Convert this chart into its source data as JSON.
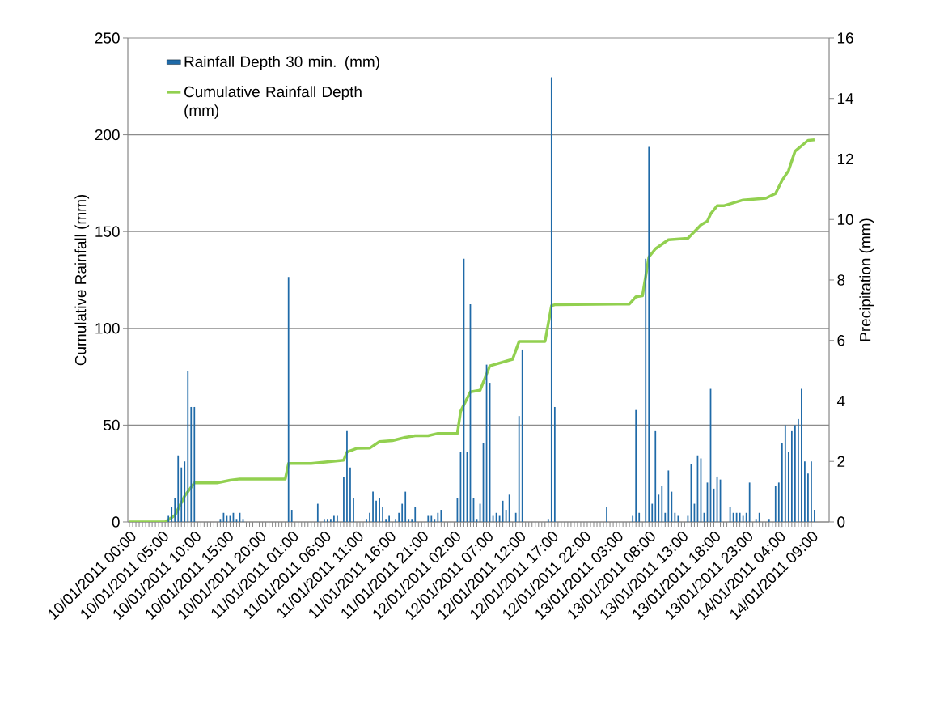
{
  "chart_data": {
    "type": "bar",
    "ylabel": "Cumulative Rainfall (mm)",
    "y2label": "Precipitation (mm)",
    "xlim": [
      "2011-01-09T23:45",
      "2011-01-14T11:45"
    ],
    "xticks": [
      {
        "value": "2011-01-10T00:00",
        "label": "10/01/2011 00:00"
      },
      {
        "value": "2011-01-10T05:00",
        "label": "10/01/2011 05:00"
      },
      {
        "value": "2011-01-10T10:00",
        "label": "10/01/2011 10:00"
      },
      {
        "value": "2011-01-10T15:00",
        "label": "10/01/2011 15:00"
      },
      {
        "value": "2011-01-10T20:00",
        "label": "10/01/2011 20:00"
      },
      {
        "value": "2011-01-11T01:00",
        "label": "11/01/2011 01:00"
      },
      {
        "value": "2011-01-11T06:00",
        "label": "11/01/2011 06:00"
      },
      {
        "value": "2011-01-11T11:00",
        "label": "11/01/2011 11:00"
      },
      {
        "value": "2011-01-11T16:00",
        "label": "11/01/2011 16:00"
      },
      {
        "value": "2011-01-11T21:00",
        "label": "11/01/2011 21:00"
      },
      {
        "value": "2011-01-12T02:00",
        "label": "12/01/2011 02:00"
      },
      {
        "value": "2011-01-12T07:00",
        "label": "12/01/2011 07:00"
      },
      {
        "value": "2011-01-12T12:00",
        "label": "12/01/2011 12:00"
      },
      {
        "value": "2011-01-12T17:00",
        "label": "12/01/2011 17:00"
      },
      {
        "value": "2011-01-12T22:00",
        "label": "12/01/2011 22:00"
      },
      {
        "value": "2011-01-13T03:00",
        "label": "13/01/2011 03:00"
      },
      {
        "value": "2011-01-13T08:00",
        "label": "13/01/2011 08:00"
      },
      {
        "value": "2011-01-13T13:00",
        "label": "13/01/2011 13:00"
      },
      {
        "value": "2011-01-13T18:00",
        "label": "13/01/2011 18:00"
      },
      {
        "value": "2011-01-13T23:00",
        "label": "13/01/2011 23:00"
      },
      {
        "value": "2011-01-14T04:00",
        "label": "14/01/2011 04:00"
      },
      {
        "value": "2011-01-14T09:00",
        "label": "14/01/2011 09:00"
      }
    ],
    "ylim": [
      0,
      250
    ],
    "yticks": [
      0,
      50,
      100,
      150,
      200,
      250
    ],
    "y2lim": [
      0,
      16
    ],
    "y2ticks": [
      0,
      2,
      4,
      6,
      8,
      10,
      12,
      14,
      16
    ],
    "grid": "y",
    "legend": "top left",
    "series": [
      {
        "name": "Rainfall Depth 30 min. (mm)",
        "axis": "y2",
        "color": "#1f6aa8",
        "x": [
          "2011-01-10T06:00",
          "2011-01-10T06:30",
          "2011-01-10T07:00",
          "2011-01-10T07:30",
          "2011-01-10T08:00",
          "2011-01-10T08:30",
          "2011-01-10T09:00",
          "2011-01-10T09:30",
          "2011-01-10T10:00",
          "2011-01-10T14:00",
          "2011-01-10T14:30",
          "2011-01-10T15:00",
          "2011-01-10T15:30",
          "2011-01-10T16:00",
          "2011-01-10T16:30",
          "2011-01-10T17:00",
          "2011-01-10T17:30",
          "2011-01-11T00:30",
          "2011-01-11T01:00",
          "2011-01-11T05:00",
          "2011-01-11T06:00",
          "2011-01-11T06:30",
          "2011-01-11T07:00",
          "2011-01-11T07:30",
          "2011-01-11T08:00",
          "2011-01-11T09:00",
          "2011-01-11T09:30",
          "2011-01-11T10:00",
          "2011-01-11T10:30",
          "2011-01-11T12:30",
          "2011-01-11T13:00",
          "2011-01-11T13:30",
          "2011-01-11T14:00",
          "2011-01-11T14:30",
          "2011-01-11T15:00",
          "2011-01-11T15:30",
          "2011-01-11T16:00",
          "2011-01-11T17:00",
          "2011-01-11T17:30",
          "2011-01-11T18:00",
          "2011-01-11T18:30",
          "2011-01-11T19:00",
          "2011-01-11T19:30",
          "2011-01-11T20:00",
          "2011-01-11T22:00",
          "2011-01-11T22:30",
          "2011-01-11T23:00",
          "2011-01-11T23:30",
          "2011-01-12T00:00",
          "2011-01-12T02:30",
          "2011-01-12T03:00",
          "2011-01-12T03:30",
          "2011-01-12T04:00",
          "2011-01-12T04:30",
          "2011-01-12T05:00",
          "2011-01-12T05:30",
          "2011-01-12T06:00",
          "2011-01-12T06:30",
          "2011-01-12T07:00",
          "2011-01-12T07:30",
          "2011-01-12T08:00",
          "2011-01-12T08:30",
          "2011-01-12T09:00",
          "2011-01-12T09:30",
          "2011-01-12T10:00",
          "2011-01-12T10:30",
          "2011-01-12T11:30",
          "2011-01-12T12:00",
          "2011-01-12T12:30",
          "2011-01-12T16:30",
          "2011-01-12T17:00",
          "2011-01-12T17:30",
          "2011-01-13T01:30",
          "2011-01-13T05:30",
          "2011-01-13T06:00",
          "2011-01-13T06:30",
          "2011-01-13T07:30",
          "2011-01-13T08:00",
          "2011-01-13T08:30",
          "2011-01-13T09:00",
          "2011-01-13T09:30",
          "2011-01-13T10:00",
          "2011-01-13T10:30",
          "2011-01-13T11:00",
          "2011-01-13T11:30",
          "2011-01-13T12:00",
          "2011-01-13T12:30",
          "2011-01-13T14:00",
          "2011-01-13T14:30",
          "2011-01-13T15:00",
          "2011-01-13T15:30",
          "2011-01-13T16:00",
          "2011-01-13T16:30",
          "2011-01-13T17:00",
          "2011-01-13T17:30",
          "2011-01-13T18:00",
          "2011-01-13T18:30",
          "2011-01-13T19:00",
          "2011-01-13T20:30",
          "2011-01-13T21:00",
          "2011-01-13T21:30",
          "2011-01-13T22:00",
          "2011-01-13T22:30",
          "2011-01-13T23:00",
          "2011-01-13T23:30",
          "2011-01-14T00:30",
          "2011-01-14T01:00",
          "2011-01-14T02:30",
          "2011-01-14T03:30",
          "2011-01-14T04:00",
          "2011-01-14T04:30",
          "2011-01-14T05:00",
          "2011-01-14T05:30",
          "2011-01-14T06:00",
          "2011-01-14T06:30",
          "2011-01-14T07:00",
          "2011-01-14T07:30",
          "2011-01-14T08:00",
          "2011-01-14T08:30",
          "2011-01-14T09:00",
          "2011-01-14T09:30"
        ],
        "values": [
          0.2,
          0.5,
          0.8,
          2.2,
          1.8,
          2.0,
          5.0,
          3.8,
          3.8,
          0.1,
          0.3,
          0.2,
          0.2,
          0.3,
          0.1,
          0.3,
          0.1,
          8.1,
          0.4,
          0.6,
          0.1,
          0.1,
          0.1,
          0.2,
          0.2,
          1.5,
          3.0,
          1.8,
          0.8,
          0.1,
          0.3,
          1.0,
          0.7,
          0.8,
          0.5,
          0.1,
          0.2,
          0.1,
          0.3,
          0.6,
          1.0,
          0.1,
          0.1,
          0.5,
          0.2,
          0.2,
          0.1,
          0.3,
          0.4,
          0.8,
          2.3,
          8.7,
          2.3,
          7.2,
          0.8,
          0.1,
          0.6,
          2.6,
          5.2,
          4.6,
          0.2,
          0.3,
          0.2,
          0.7,
          0.4,
          0.9,
          0.3,
          3.5,
          5.7,
          0.1,
          14.7,
          3.8,
          0.5,
          0.2,
          3.7,
          0.3,
          8.7,
          12.4,
          0.6,
          3.0,
          0.9,
          1.2,
          0.3,
          1.7,
          1.0,
          0.3,
          0.2,
          0.2,
          1.9,
          0.6,
          2.2,
          2.1,
          0.3,
          1.3,
          4.4,
          1.1,
          1.5,
          1.4,
          0.5,
          0.3,
          0.3,
          0.3,
          0.2,
          0.3,
          1.3,
          0.1,
          0.3,
          0.1,
          1.2,
          1.3,
          2.6,
          3.2,
          2.3,
          3.0,
          3.2,
          3.4,
          4.4,
          2.0,
          1.6,
          2.0,
          0.4
        ]
      },
      {
        "name": "Cumulative Rainfall Depth (mm)",
        "type": "line",
        "color": "#92d050",
        "x": [
          "2011-01-10T00:00",
          "2011-01-10T05:30",
          "2011-01-10T07:00",
          "2011-01-10T08:30",
          "2011-01-10T10:00",
          "2011-01-10T13:30",
          "2011-01-10T15:30",
          "2011-01-10T17:00",
          "2011-01-11T00:00",
          "2011-01-11T00:30",
          "2011-01-11T04:00",
          "2011-01-11T09:00",
          "2011-01-11T09:30",
          "2011-01-11T11:00",
          "2011-01-11T13:00",
          "2011-01-11T14:30",
          "2011-01-11T16:30",
          "2011-01-11T18:30",
          "2011-01-11T20:00",
          "2011-01-11T22:00",
          "2011-01-11T23:30",
          "2011-01-12T02:30",
          "2011-01-12T03:00",
          "2011-01-12T04:30",
          "2011-01-12T06:00",
          "2011-01-12T07:30",
          "2011-01-12T11:00",
          "2011-01-12T12:00",
          "2011-01-12T16:00",
          "2011-01-12T17:00",
          "2011-01-12T17:30",
          "2011-01-13T05:00",
          "2011-01-13T06:00",
          "2011-01-13T07:00",
          "2011-01-13T08:00",
          "2011-01-13T09:00",
          "2011-01-13T11:00",
          "2011-01-13T14:00",
          "2011-01-13T16:00",
          "2011-01-13T17:00",
          "2011-01-13T17:30",
          "2011-01-13T18:30",
          "2011-01-13T19:30",
          "2011-01-13T22:30",
          "2011-01-14T02:00",
          "2011-01-14T03:30",
          "2011-01-14T04:30",
          "2011-01-14T05:30",
          "2011-01-14T06:30",
          "2011-01-14T08:30",
          "2011-01-14T09:30"
        ],
        "values": [
          0,
          0,
          3.4,
          13.4,
          20.2,
          20.2,
          21.5,
          22.2,
          22.2,
          30.2,
          30.2,
          31.9,
          36.1,
          38,
          38.1,
          41.5,
          42,
          43.7,
          44.5,
          44.5,
          45.7,
          45.7,
          57.1,
          67.2,
          68,
          80.6,
          84,
          93.2,
          93.2,
          111.7,
          112.2,
          112.6,
          116.3,
          116.8,
          136.9,
          141.1,
          145.8,
          146.5,
          153.4,
          155.4,
          159.1,
          163.3,
          163.3,
          166.3,
          167.2,
          169.7,
          176.4,
          181.5,
          191.5,
          197.1,
          197.4
        ]
      }
    ]
  }
}
